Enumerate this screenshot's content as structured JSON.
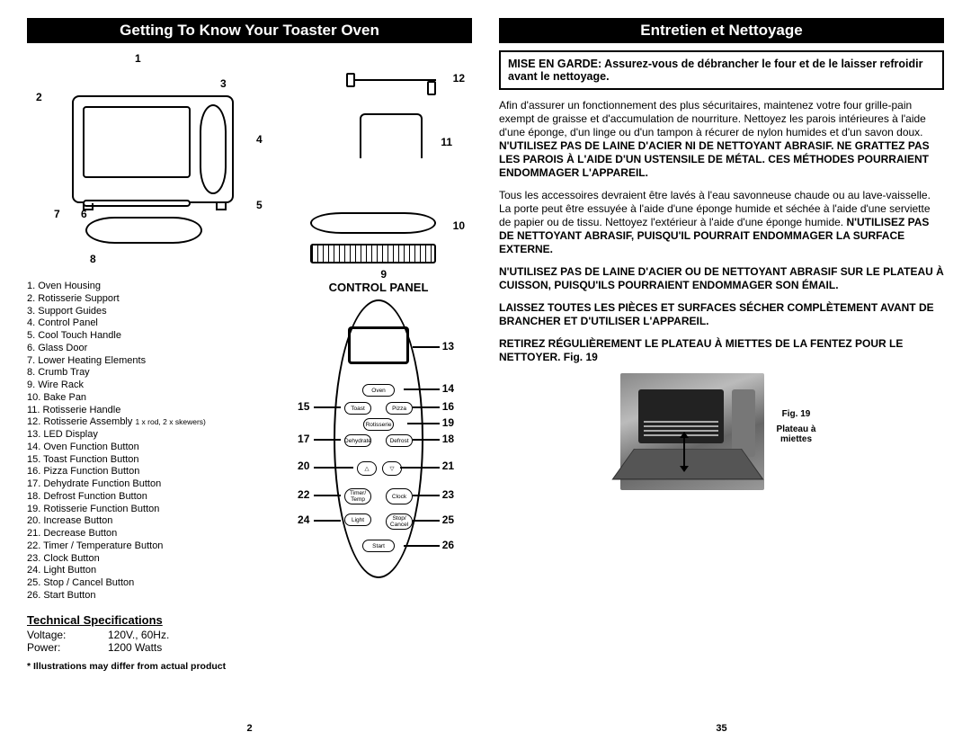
{
  "left": {
    "title": "Getting To Know Your Toaster Oven",
    "diagram_callouts": [
      "1",
      "2",
      "3",
      "4",
      "5",
      "6",
      "7",
      "8",
      "9",
      "10",
      "11",
      "12"
    ],
    "parts": [
      "Oven Housing",
      "Rotisserie Support",
      "Support Guides",
      "Control Panel",
      "Cool Touch Handle",
      "Glass Door",
      "Lower Heating Elements",
      "Crumb Tray",
      "Wire Rack",
      "Bake Pan",
      "Rotisserie Handle",
      "Rotisserie Assembly",
      "LED Display",
      "Oven Function Button",
      "Toast Function Button",
      "Pizza Function Button",
      "Dehydrate Function Button",
      "Defrost Function Button",
      "Rotisserie Function Button",
      "Increase Button",
      "Decrease Button",
      "Timer / Temperature Button",
      "Clock Button",
      "Light Button",
      "Stop / Cancel Button",
      "Start Button"
    ],
    "parts_note_12": " 1 x rod, 2 x skewers)",
    "control_panel_head": "CONTROL PANEL",
    "cp_buttons": {
      "oven": "Oven",
      "toast": "Toast",
      "pizza": "Pizza",
      "rotis": "Rotisserie",
      "dehyd": "Dehydrate",
      "defrost": "Defrost",
      "timer": "Timer/\nTemp",
      "clock": "Clock",
      "light": "Light",
      "stop": "Stop/\nCancel",
      "start": "Start"
    },
    "cp_callouts": [
      "13",
      "14",
      "15",
      "16",
      "17",
      "18",
      "19",
      "20",
      "21",
      "22",
      "23",
      "24",
      "25",
      "26"
    ],
    "tech_head": "Technical Specifications",
    "specs": {
      "voltage_label": "Voltage:",
      "voltage_value": "120V.,  60Hz.",
      "power_label": "Power:",
      "power_value": "1200 Watts"
    },
    "footnote": "* Illustrations may differ from actual product",
    "page_num": "2"
  },
  "right": {
    "title": "Entretien et Nettoyage",
    "warning": "MISE EN GARDE: Assurez-vous de débrancher le four et de le laisser refroidir avant le nettoyage.",
    "para1_plain": "Afin d'assurer un fonctionnement des plus sécuritaires, maintenez votre four grille-pain exempt de graisse et d'accumulation de nourriture. Nettoyez les parois intérieures à l'aide d'une éponge, d'un linge ou d'un tampon à récurer de nylon humides et d'un savon doux. ",
    "para1_bold": "N'UTILISEZ PAS DE LAINE D'ACIER NI DE NETTOYANT ABRASIF. NE GRATTEZ PAS LES PAROIS À L'AIDE D'UN USTENSILE DE MÉTAL. CES MÉTHODES POURRAIENT ENDOMMAGER L'APPAREIL.",
    "para2_plain": "Tous les accessoires devraient être lavés à l'eau savonneuse chaude ou au lave-vaisselle.  La porte peut être essuyée à l'aide d'une éponge humide et séchée à l'aide d'une serviette de papier ou de tissu.  Nettoyez l'extérieur à l'aide d'une éponge humide.  ",
    "para2_bold": "N'UTILISEZ PAS DE NETTOYANT ABRASIF, PUISQU'IL POURRAIT ENDOMMAGER LA SURFACE EXTERNE.",
    "para3": "N'UTILISEZ PAS DE LAINE D'ACIER OU DE NETTOYANT ABRASIF SUR LE PLATEAU À CUISSON, PUISQU'ILS POURRAIENT ENDOMMAGER SON ÉMAIL.",
    "para4": "LAISSEZ TOUTES LES PIÈCES ET SURFACES SÉCHER COMPLÈTEMENT AVANT DE BRANCHER ET D'UTILISER L'APPAREIL.",
    "para5": "RETIREZ RÉGULIÈREMENT LE PLATEAU À MIETTES DE LA FENTEZ POUR LE NETTOYER. Fig. 19",
    "fig_label": "Fig. 19",
    "fig_caption": "Plateau à miettes",
    "page_num": "35"
  }
}
